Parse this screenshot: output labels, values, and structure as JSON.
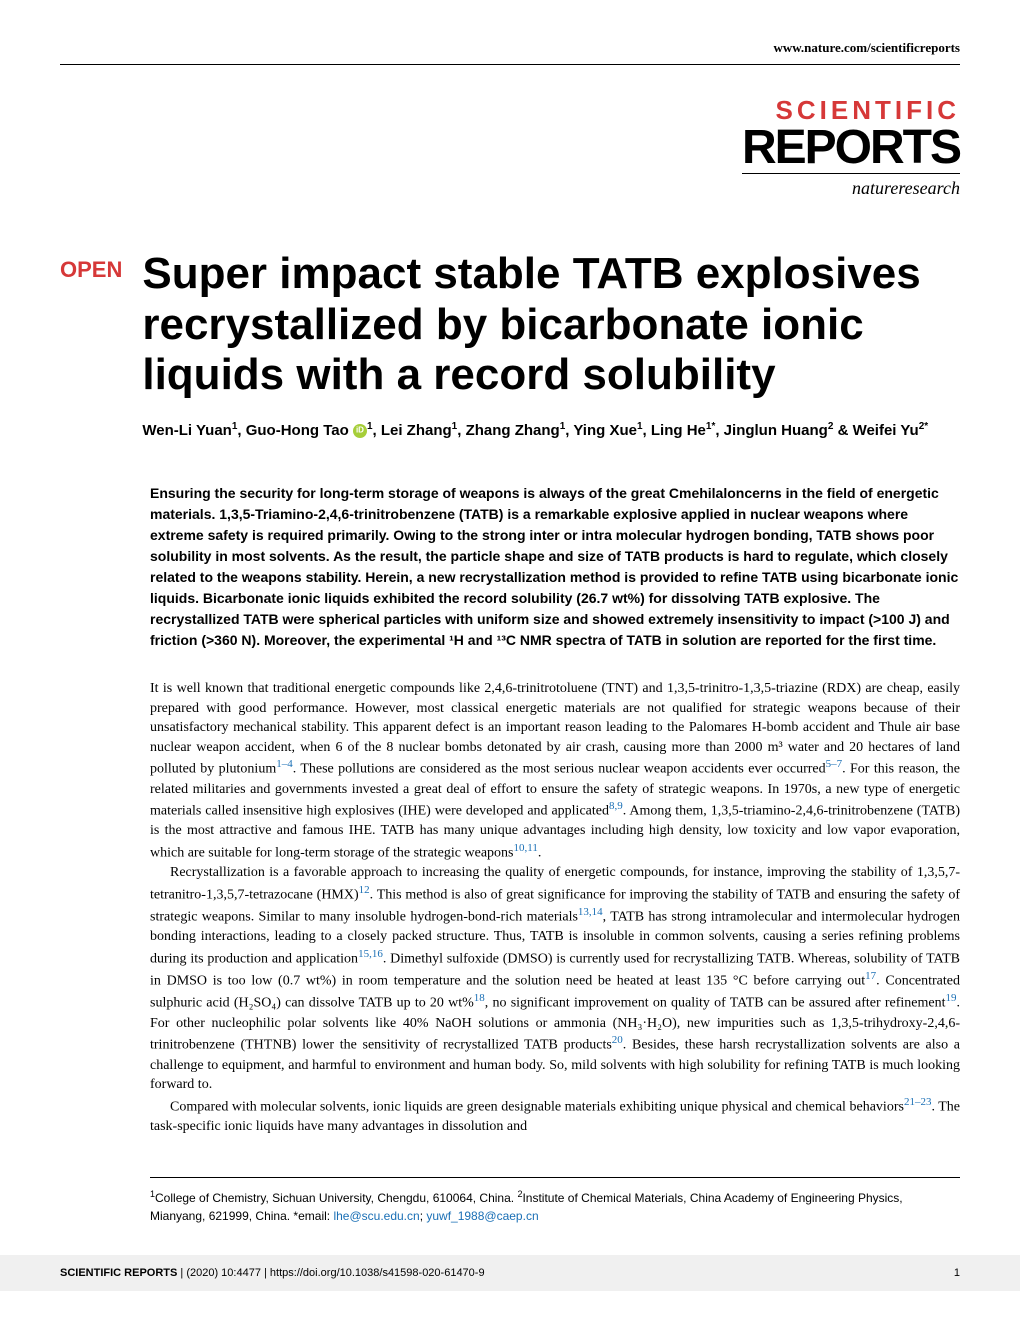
{
  "header": {
    "url": "www.nature.com/scientificreports"
  },
  "logo": {
    "line1": "SCIENTIFIC",
    "line2": "REPORTS",
    "line3": "natureresearch"
  },
  "article": {
    "badge": "OPEN",
    "title": "Super impact stable TATB explosives recrystallized by bicarbonate ionic liquids with a record solubility",
    "authors_html": "Wen-Li Yuan<sup>1</sup>, Guo-Hong Tao <span class=\"orcid-icon\"></span><sup>1</sup>, Lei Zhang<sup>1</sup>, Zhang Zhang<sup>1</sup>, Ying Xue<sup>1</sup>, Ling He<sup>1*</sup>, Jinglun Huang<sup>2</sup> & Weifei Yu<sup>2*</sup>",
    "abstract": "Ensuring the security for long-term storage of weapons is always of the great Cmehilaloncerns in the field of energetic materials. 1,3,5-Triamino-2,4,6-trinitrobenzene (TATB) is a remarkable explosive applied in nuclear weapons where extreme safety is required primarily. Owing to the strong inter or intra molecular hydrogen bonding, TATB shows poor solubility in most solvents. As the result, the particle shape and size of TATB products is hard to regulate, which closely related to the weapons stability. Herein, a new recrystallization method is provided to refine TATB using bicarbonate ionic liquids. Bicarbonate ionic liquids exhibited the record solubility (26.7 wt%) for dissolving TATB explosive. The recrystallized TATB were spherical particles with uniform size and showed extremely insensitivity to impact (>100 J) and friction (>360 N). Moreover, the experimental ¹H and ¹³C NMR spectra of TATB in solution are reported for the first time."
  },
  "body": {
    "p1_html": "It is well known that traditional energetic compounds like 2,4,6-trinitrotoluene (TNT) and 1,3,5-trinitro-1,3,5-triazine (RDX) are cheap, easily prepared with good performance. However, most classical energetic materials are not qualified for strategic weapons because of their unsatisfactory mechanical stability. This apparent defect is an important reason leading to the Palomares H-bomb accident and Thule air base nuclear weapon accident, when 6 of the 8 nuclear bombs detonated by air crash, causing more than 2000 m³ water and 20 hectares of land polluted by plutonium<span class=\"ref-link\">1–4</span>. These pollutions are considered as the most serious nuclear weapon accidents ever occurred<span class=\"ref-link\">5–7</span>. For this reason, the related militaries and governments invested a great deal of effort to ensure the safety of strategic weapons. In 1970s, a new type of energetic materials called insensitive high explosives (IHE) were developed and applicated<span class=\"ref-link\">8,9</span>. Among them, 1,3,5-triamino-2,4,6-trinitrobenzene (TATB) is the most attractive and famous IHE. TATB has many unique advantages including high density, low toxicity and low vapor evaporation, which are suitable for long-term storage of the strategic weapons<span class=\"ref-link\">10,11</span>.",
    "p2_html": "Recrystallization is a favorable approach to increasing the quality of energetic compounds, for instance, improving the stability of 1,3,5,7-tetranitro-1,3,5,7-tetrazocane (HMX)<span class=\"ref-link\">12</span>. This method is also of great significance for improving the stability of TATB and ensuring the safety of strategic weapons. Similar to many insoluble hydrogen-bond-rich materials<span class=\"ref-link\">13,14</span>, TATB has strong intramolecular and intermolecular hydrogen bonding interactions, leading to a closely packed structure. Thus, TATB is insoluble in common solvents, causing a series refining problems during its production and application<span class=\"ref-link\">15,16</span>. Dimethyl sulfoxide (DMSO) is currently used for recrystallizing TATB. Whereas, solubility of TATB in DMSO is too low (0.7 wt%) in room temperature and the solution need be heated at least 135 °C before carrying out<span class=\"ref-link\">17</span>. Concentrated sulphuric acid (H₂SO₄) can dissolve TATB up to 20 wt%<span class=\"ref-link\">18</span>, no significant improvement on quality of TATB can be assured after refinement<span class=\"ref-link\">19</span>. For other nucleophilic polar solvents like 40% NaOH solutions or ammonia (NH₃·H₂O), new impurities such as 1,3,5-trihydroxy-2,4,6-trinitrobenzene (THTNB) lower the sensitivity of recrystallized TATB products<span class=\"ref-link\">20</span>. Besides, these harsh recrystallization solvents are also a challenge to equipment, and harmful to environment and human body. So, mild solvents with high solubility for refining TATB is much looking forward to.",
    "p3_html": "Compared with molecular solvents, ionic liquids are green designable materials exhibiting unique physical and chemical behaviors<span class=\"ref-link\">21–23</span>. The task-specific ionic liquids have many advantages in dissolution and"
  },
  "affiliations_html": "<sup>1</sup>College of Chemistry, Sichuan University, Chengdu, 610064, China. <sup>2</sup>Institute of Chemical Materials, China Academy of Engineering Physics, Mianyang, 621999, China. *email: <span class=\"email-link\">lhe@scu.edu.cn</span>; <span class=\"email-link\">yuwf_1988@caep.cn</span>",
  "footer": {
    "journal": "SCIENTIFIC REPORTS",
    "citation": "(2020) 10:4477 | https://doi.org/10.1038/s41598-020-61470-9",
    "page": "1"
  }
}
